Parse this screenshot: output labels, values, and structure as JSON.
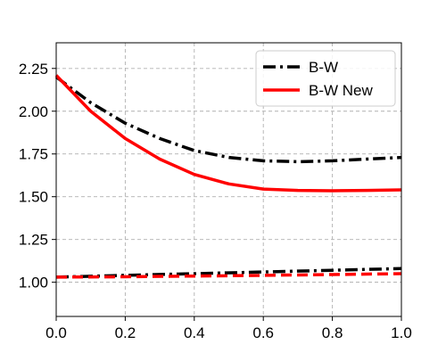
{
  "chart_data": {
    "type": "line",
    "title": "",
    "xlabel": "",
    "ylabel": "",
    "xlim": [
      0.0,
      1.0
    ],
    "ylim": [
      0.8,
      2.4
    ],
    "xticks": [
      "0.0",
      "0.2",
      "0.4",
      "0.6",
      "0.8",
      "1.0"
    ],
    "yticks": [
      "1.00",
      "1.25",
      "1.50",
      "1.75",
      "2.00",
      "2.25"
    ],
    "grid": true,
    "legend_position": "top-right",
    "legend": [
      {
        "label": "B-W",
        "color": "#000000",
        "style": "dashdot"
      },
      {
        "label": "B-W New",
        "color": "#ff0000",
        "style": "solid"
      }
    ],
    "series": [
      {
        "name": "B-W",
        "group": "upper",
        "color": "#000000",
        "style": "dashdot",
        "x": [
          0.0,
          0.1,
          0.2,
          0.3,
          0.4,
          0.5,
          0.6,
          0.7,
          0.8,
          0.9,
          1.0
        ],
        "y": [
          2.2,
          2.05,
          1.93,
          1.84,
          1.77,
          1.73,
          1.71,
          1.705,
          1.71,
          1.72,
          1.73
        ]
      },
      {
        "name": "B-W New",
        "group": "upper",
        "color": "#ff0000",
        "style": "solid",
        "x": [
          0.0,
          0.1,
          0.2,
          0.3,
          0.4,
          0.5,
          0.6,
          0.7,
          0.8,
          0.9,
          1.0
        ],
        "y": [
          2.21,
          2.0,
          1.84,
          1.72,
          1.63,
          1.575,
          1.545,
          1.537,
          1.535,
          1.537,
          1.54
        ]
      },
      {
        "name": "B-W",
        "group": "lower",
        "color": "#000000",
        "style": "dashdot",
        "x": [
          0.0,
          0.2,
          0.4,
          0.6,
          0.8,
          1.0
        ],
        "y": [
          1.03,
          1.04,
          1.05,
          1.06,
          1.07,
          1.08
        ]
      },
      {
        "name": "B-W New",
        "group": "lower",
        "color": "#ff0000",
        "style": "dashed",
        "x": [
          0.0,
          0.2,
          0.4,
          0.6,
          0.8,
          1.0
        ],
        "y": [
          1.03,
          1.032,
          1.036,
          1.04,
          1.045,
          1.05
        ]
      }
    ]
  }
}
